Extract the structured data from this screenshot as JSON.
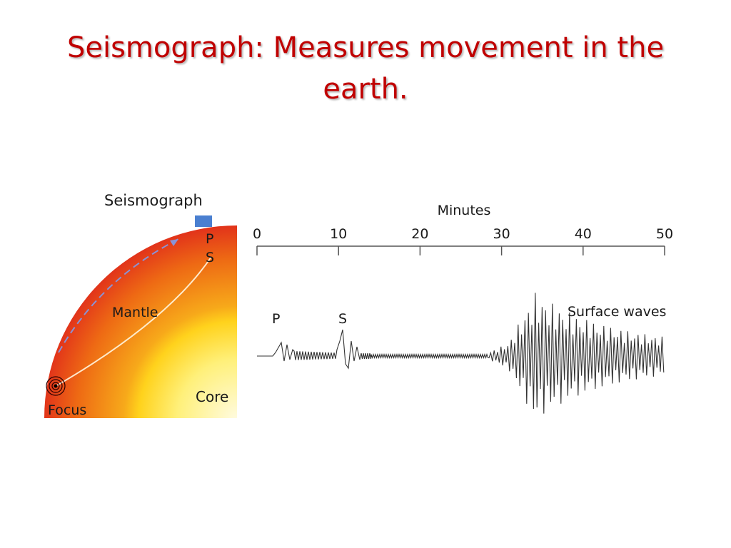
{
  "slide": {
    "title": "Seismograph: Measures movement in the earth."
  },
  "earth_section": {
    "seismograph_label": "Seismograph",
    "surface_waves_label": "Surface waves",
    "mantle_label": "Mantle",
    "core_label": "Core",
    "focus_label": "Focus",
    "p_label": "P",
    "s_label": "S",
    "colors": {
      "crust": "#d8101c",
      "mantle": "#ef6a12",
      "core": "#ffe61f",
      "station": "#4a7fd0"
    }
  },
  "seismogram": {
    "axis_title": "Minutes",
    "ticks": [
      "0",
      "10",
      "20",
      "30",
      "40",
      "50"
    ],
    "p_label": "P",
    "s_label": "S",
    "surface_waves_label": "Surface waves"
  }
}
